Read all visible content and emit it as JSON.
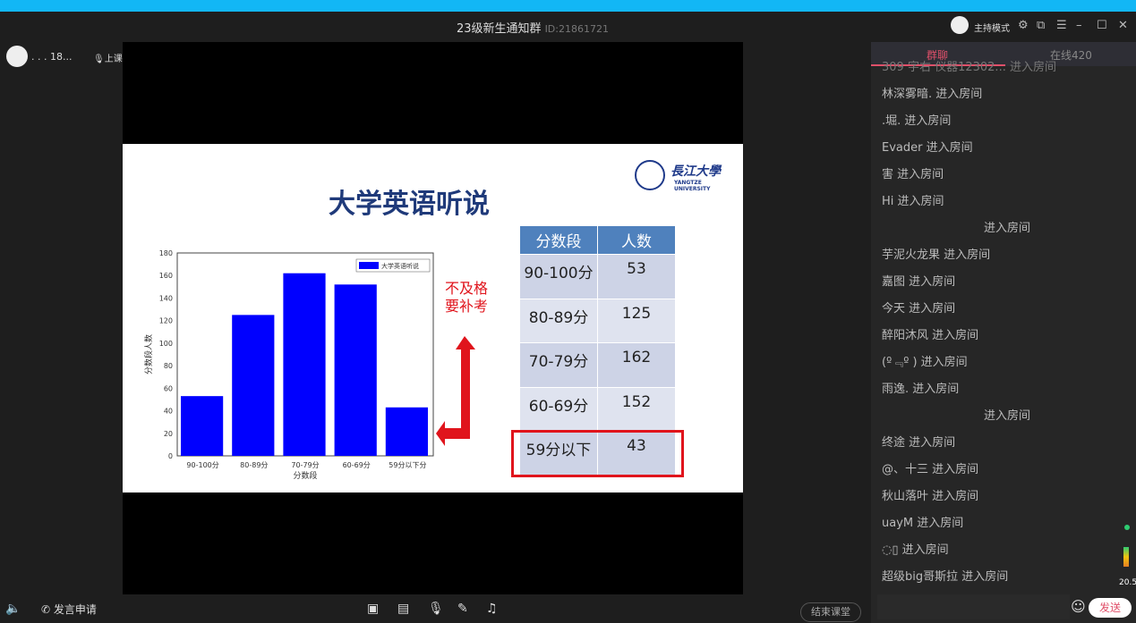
{
  "window": {
    "title": "23级新生通知群",
    "id": "ID:21861721",
    "host_mode": "主持模式",
    "colors": {
      "top_bar": "#12b7f5",
      "accent": "#e0506a"
    }
  },
  "presenter": {
    "name": ". . . 18...",
    "status": "上课中"
  },
  "slide": {
    "title": "大学英语听说",
    "logo": "長江大學",
    "logo_sub": "YANGTZE UNIVERSITY",
    "note_line1": "不及格",
    "note_line2": "要补考",
    "table": {
      "headers": [
        "分数段",
        "人数"
      ],
      "rows": [
        [
          "90-100分",
          "53"
        ],
        [
          "80-89分",
          "125"
        ],
        [
          "70-79分",
          "162"
        ],
        [
          "60-69分",
          "152"
        ],
        [
          "59分以下",
          "43"
        ]
      ]
    }
  },
  "chart_data": {
    "type": "bar",
    "categories": [
      "90-100分",
      "80-89分",
      "70-79分",
      "60-69分",
      "59分以下分"
    ],
    "series": [
      {
        "name": "大学英语听说",
        "values": [
          53,
          125,
          162,
          152,
          43
        ]
      }
    ],
    "xlabel": "分数段",
    "ylabel": "分数段人数",
    "ylim": [
      0,
      180
    ],
    "yticks": [
      0,
      20,
      40,
      60,
      80,
      100,
      120,
      140,
      160,
      180
    ],
    "legend": "top-right",
    "color": "#0000ff"
  },
  "sidebar": {
    "tabs": [
      "群聊",
      "在线420"
    ],
    "messages": [
      "309 字右 仪器12302... 进入房间",
      "林深雾暗. 进入房间",
      ".堀. 进入房间",
      "Evader 进入房间",
      "害 进入房间",
      "Hi 进入房间",
      "进入房间",
      "芋泥火龙果 进入房间",
      "嘉图 进入房间",
      "今天 进入房间",
      "醉阳沐风 进入房间",
      "(º﹃º ) 进入房间",
      "雨逸. 进入房间",
      "进入房间",
      "终途 进入房间",
      "@、十三 进入房间",
      "秋山落叶 进入房间",
      "uayM 进入房间",
      "◌▯ 进入房间",
      "超级big哥斯拉 进入房间"
    ],
    "send": "发送",
    "net": "20.5"
  },
  "bottom": {
    "speak_request": "发言申请",
    "end_class": "结束课堂"
  }
}
